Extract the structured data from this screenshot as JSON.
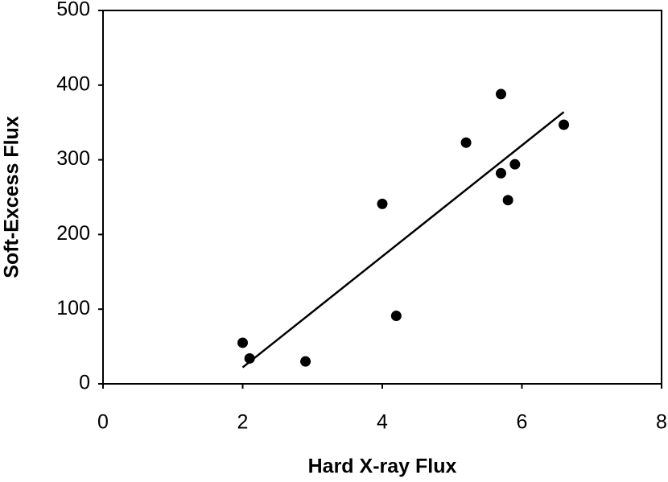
{
  "chart_data": {
    "type": "scatter",
    "x_label": "Hard X-ray Flux",
    "y_label": "Soft-Excess Flux",
    "series": [
      {
        "color": "#000000",
        "x": [
          2.0,
          2.1,
          2.9,
          4.0,
          4.2,
          5.2,
          5.7,
          5.7,
          5.8,
          5.9,
          6.6
        ],
        "values": [
          55,
          34,
          30,
          241,
          91,
          323,
          388,
          282,
          246,
          294,
          347
        ]
      }
    ],
    "trendline": {
      "color": "#000000",
      "x": [
        2.0,
        6.6
      ],
      "values": [
        22,
        364
      ]
    },
    "xlim": [
      0,
      8
    ],
    "xticks": [
      0,
      2,
      4,
      6,
      8
    ],
    "ylim": [
      0,
      500
    ],
    "yticks": [
      0,
      100,
      200,
      300,
      400,
      500
    ],
    "grid": false
  }
}
